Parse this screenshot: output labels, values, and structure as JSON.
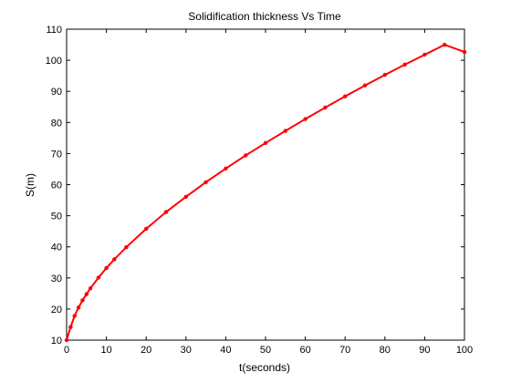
{
  "chart_data": {
    "type": "line",
    "title": "Solidification thickness Vs Time",
    "xlabel": "t(seconds)",
    "ylabel": "S(m)",
    "xlim": [
      0,
      100
    ],
    "ylim": [
      10,
      110
    ],
    "xticks": [
      0,
      10,
      20,
      30,
      40,
      50,
      60,
      70,
      80,
      90,
      100
    ],
    "yticks": [
      10,
      20,
      30,
      40,
      50,
      60,
      70,
      80,
      90,
      100,
      110
    ],
    "grid": false,
    "series": [
      {
        "color": "#ff0000",
        "marker": "dot",
        "x": [
          0,
          1,
          2,
          3,
          4,
          5,
          6,
          8,
          10,
          12,
          15,
          20,
          25,
          30,
          35,
          40,
          45,
          50,
          55,
          60,
          65,
          70,
          75,
          80,
          85,
          90,
          95,
          100
        ],
        "y": [
          10.0,
          14.2,
          17.8,
          20.5,
          22.8,
          24.8,
          26.7,
          30.1,
          33.2,
          36.0,
          39.9,
          45.8,
          51.2,
          56.1,
          60.8,
          65.2,
          69.4,
          73.4,
          77.3,
          81.1,
          84.8,
          88.4,
          91.9,
          95.3,
          98.6,
          101.8,
          105.0,
          102.7
        ]
      }
    ]
  }
}
